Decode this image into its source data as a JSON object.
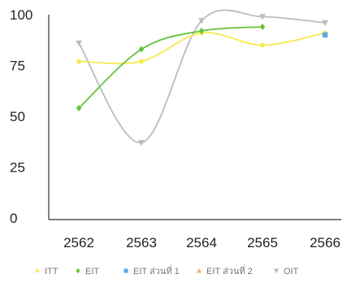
{
  "chart_data": {
    "type": "line",
    "categories": [
      "2562",
      "2563",
      "2564",
      "2565",
      "2566"
    ],
    "ylim": [
      0,
      100
    ],
    "yticks": [
      "0",
      "25",
      "50",
      "75",
      "100"
    ],
    "grid": false,
    "legend_position": "bottom",
    "series": [
      {
        "name": "ITT",
        "color": "#f5ea52",
        "marker": "circle",
        "values": [
          77,
          77,
          91,
          85,
          91
        ]
      },
      {
        "name": "EIT",
        "color": "#67c23a",
        "marker": "diamond",
        "values": [
          54,
          83,
          92,
          94,
          null
        ]
      },
      {
        "name": "EIT ส่วนที่ 1",
        "color": "#5aa9e6",
        "marker": "square",
        "values": [
          null,
          null,
          null,
          null,
          90
        ]
      },
      {
        "name": "EIT ส่วนที่ 2",
        "color": "#f2b06b",
        "marker": "triangle",
        "values": [
          null,
          null,
          null,
          null,
          null
        ]
      },
      {
        "name": "OIT",
        "color": "#b9bcc4",
        "marker": "triangle-down",
        "values": [
          86,
          37,
          97,
          99,
          96
        ]
      }
    ]
  }
}
